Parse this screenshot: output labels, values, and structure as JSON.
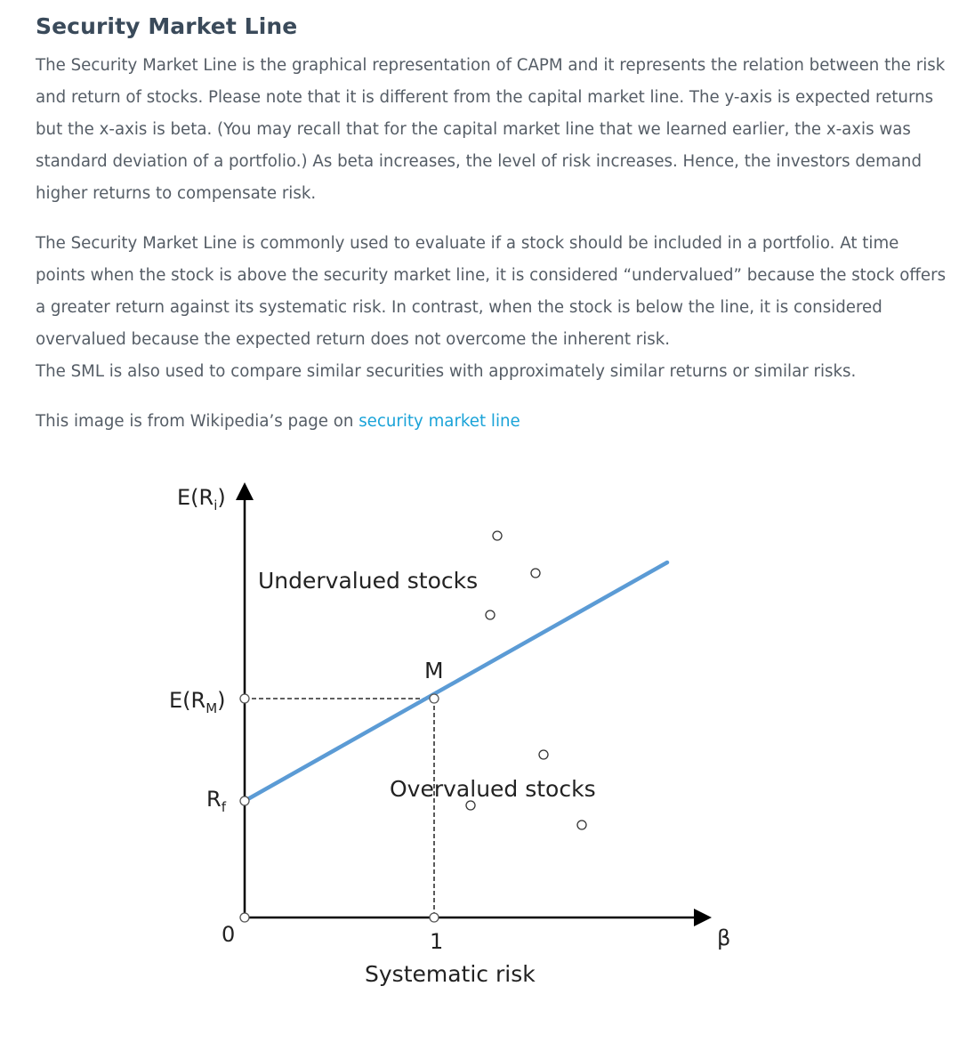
{
  "article": {
    "title": "Security Market Line",
    "paragraph1": "The Security Market Line is the graphical representation of CAPM and it represents the relation between the risk and return of stocks. Please note that it is different from the capital market line. The y-axis is expected returns but the x-axis is beta. (You may recall that for the capital market line that we learned earlier, the x-axis was standard deviation of a portfolio.) As beta increases, the level of risk increases. Hence, the investors demand higher returns to compensate risk.",
    "paragraph2_line1": "The Security Market Line is commonly used to evaluate if a stock should be included in a portfolio. At time points when the stock is above the security market line, it is considered “undervalued” because the stock offers a greater return against its systematic risk. In contrast, when the stock is below the line, it is considered overvalued because the expected return does not overcome the inherent risk.",
    "paragraph2_line2": "The SML is also used to compare similar securities with approximately similar returns or similar risks.",
    "source_prefix": "This image is from Wikipedia’s page on ",
    "source_link": "security market line"
  },
  "figure": {
    "y_label_main": "E(R",
    "y_label_sub": "i",
    "y_label_end": ")",
    "erm_main": "E(R",
    "erm_sub": "M",
    "erm_end": ")",
    "rf_main": "R",
    "rf_sub": "f",
    "origin_label": "0",
    "beta_one_label": "1",
    "beta_label": "β",
    "x_axis_title": "Systematic risk",
    "undervalued_label": "Undervalued stocks",
    "overvalued_label": "Overvalued stocks",
    "market_label": "M",
    "line_color": "#5b9bd5"
  }
}
